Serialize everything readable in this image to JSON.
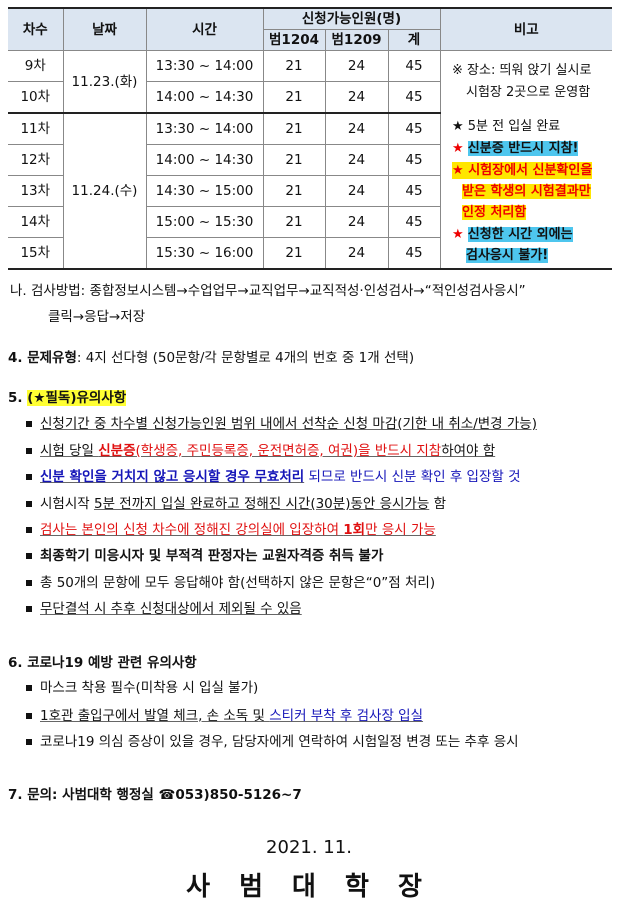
{
  "table": {
    "headers": {
      "round": "차수",
      "date": "날짜",
      "time": "시간",
      "capacity": "신청가능인원(명)",
      "room1": "범1204",
      "room2": "범1209",
      "total": "계",
      "note": "비고"
    },
    "rows": [
      {
        "round": "9차",
        "time": "13:30 ~ 14:00",
        "room1": "21",
        "room2": "24",
        "total": "45"
      },
      {
        "round": "10차",
        "time": "14:00 ~ 14:30",
        "room1": "21",
        "room2": "24",
        "total": "45"
      },
      {
        "round": "11차",
        "time": "13:30 ~ 14:00",
        "room1": "21",
        "room2": "24",
        "total": "45"
      },
      {
        "round": "12차",
        "time": "14:00 ~ 14:30",
        "room1": "21",
        "room2": "24",
        "total": "45"
      },
      {
        "round": "13차",
        "time": "14:30 ~ 15:00",
        "room1": "21",
        "room2": "24",
        "total": "45"
      },
      {
        "round": "14차",
        "time": "15:00 ~ 15:30",
        "room1": "21",
        "room2": "24",
        "total": "45"
      },
      {
        "round": "15차",
        "time": "15:30 ~ 16:00",
        "room1": "21",
        "room2": "24",
        "total": "45"
      }
    ],
    "dates": [
      "11.23.(화)",
      "11.24.(수)"
    ],
    "notes": {
      "place1": "※ 장소: 띄워 앉기 실시로",
      "place2": "시험장 2곳으로 운영함",
      "n1": "★ 5분 전 입실 완료",
      "star": "★",
      "n2": "신분증 반드시 지참!",
      "n3a": "시험장에서 신분확인을",
      "n3b": "받은 학생의 시험결과만",
      "n3c": "인정 처리함",
      "n4a": "신청한 시간 외에는",
      "n4b": "검사응시 불가!"
    }
  },
  "method": {
    "line1": "나. 검사방법: 종합정보시스템→수업업무→교직업무→교직적성·인성검사→“적인성검사응시”",
    "line2": "클릭→응답→저장"
  },
  "section4": {
    "label": "4. 문제유형",
    "text": ": 4지 선다형 (50문항/각 문항별로 4개의 번호 중 1개 선택)"
  },
  "section5": {
    "num": "5. ",
    "title": "(★필독)유의사항",
    "items": [
      [
        {
          "t": "신청기간 중 차수별 신청가능인원 범위 내에서 선착순 신청 마감(기한 내 취소/변경 가능)",
          "c": "u"
        }
      ],
      [
        {
          "t": "시험 당일 ",
          "c": "u"
        },
        {
          "t": "신분증",
          "c": "u red b"
        },
        {
          "t": "(학생증, 주민등록증, 운전면허증, 여권)을 반드시 지참",
          "c": "u red"
        },
        {
          "t": "하여야 함",
          "c": "u"
        }
      ],
      [
        {
          "t": "신분 확인을 거치지 않고 응시할 경우 무효처리",
          "c": "u blue b"
        },
        {
          "t": " 되므로 반드시 신분 확인 후 입장할 것",
          "c": "blue"
        }
      ],
      [
        {
          "t": "시험시작 ",
          "c": ""
        },
        {
          "t": "5분 전까지 입실 완료하고 정해진 시간(30분)동안 응시가능",
          "c": "u"
        },
        {
          "t": " 함",
          "c": ""
        }
      ],
      [
        {
          "t": "검사는 본인의 신청 차수에 정해진 강의실에 입장하여 ",
          "c": "u red"
        },
        {
          "t": "1회",
          "c": "u red b"
        },
        {
          "t": "만 응시 가능",
          "c": "u red"
        }
      ],
      [
        {
          "t": "최종학기 미응시자 및 부적격 판정자는 교원자격증 취득 불가",
          "c": "b"
        }
      ],
      [
        {
          "t": "총 50개의 문항에 모두 응답해야 함(선택하지 않은 문항은“0”점 처리)",
          "c": ""
        }
      ],
      [
        {
          "t": "무단결석 시 추후 신청대상에서 제외될 수 있음",
          "c": "u"
        }
      ]
    ]
  },
  "section6": {
    "title": "6. 코로나19 예방 관련 유의사항",
    "items": [
      [
        {
          "t": "마스크 착용 필수(미착용 시 입실 불가)",
          "c": ""
        }
      ],
      [
        {
          "t": "1호관 출입구에서 발열 체크, 손 소독 및 ",
          "c": "u"
        },
        {
          "t": "스티커 부착 후 검사장 입실",
          "c": "u blue"
        }
      ],
      [
        {
          "t": "코로나19 의심 증상이 있을 경우, 담당자에게 연락하여 시험일정 변경 또는 추후 응시",
          "c": ""
        }
      ]
    ]
  },
  "section7": {
    "label": "7. 문의: 사범대학 행정실 ",
    "phone_icon": "☎",
    "phone": "053)850-5126~7"
  },
  "footer": {
    "date": "2021. 11.",
    "signer": "사 범 대 학 장"
  }
}
